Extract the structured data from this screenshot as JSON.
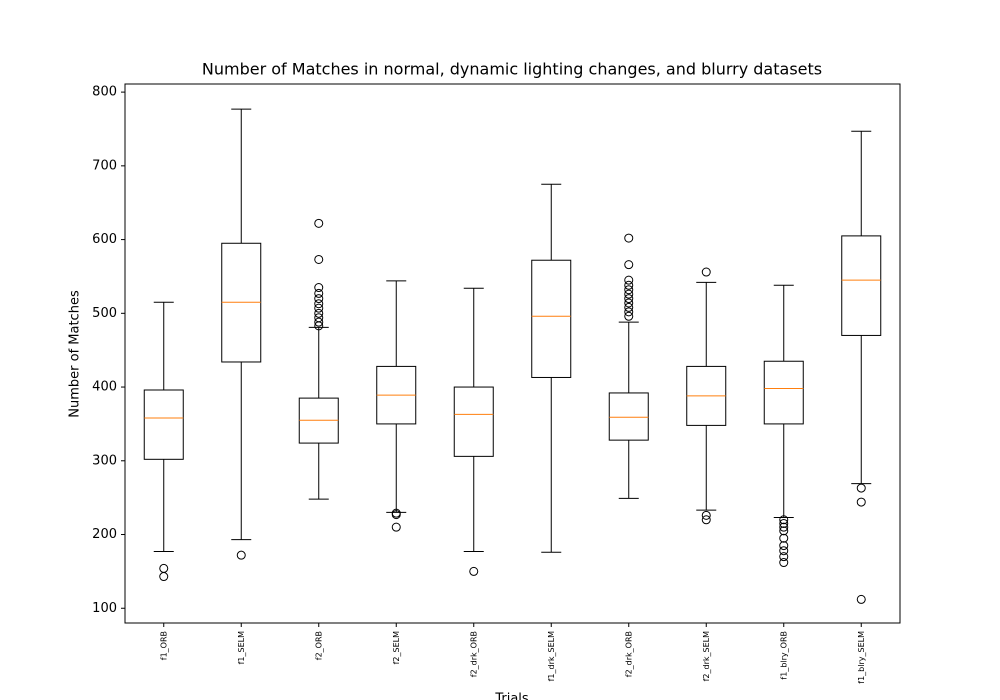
{
  "chart_data": {
    "type": "box",
    "title": "Number of Matches in normal, dynamic lighting changes, and blurry datasets",
    "x_label": "Trials",
    "y_label": "Number of Matches",
    "categories": [
      "f1_ORB",
      "f1_SELM",
      "f2_ORB",
      "f2_SELM",
      "f2_drk_ORB",
      "f1_drk_SELM",
      "f2_drk_ORB",
      "f2_drk_SELM",
      "f1_blry_ORB",
      "f1_blry_SELM"
    ],
    "boxes": [
      {
        "low": 177,
        "q1": 302,
        "median": 358,
        "q3": 396,
        "high": 515,
        "outliers": [
          154,
          143
        ]
      },
      {
        "low": 193,
        "q1": 434,
        "median": 515,
        "q3": 595,
        "high": 777,
        "outliers": [
          172
        ]
      },
      {
        "low": 248,
        "q1": 324,
        "median": 355,
        "q3": 385,
        "high": 481,
        "outliers": [
          622,
          573,
          535,
          527,
          520,
          513,
          507,
          500,
          494,
          488,
          483
        ]
      },
      {
        "low": 230,
        "q1": 350,
        "median": 389,
        "q3": 428,
        "high": 544,
        "outliers": [
          229,
          227,
          210
        ]
      },
      {
        "low": 177,
        "q1": 306,
        "median": 363,
        "q3": 400,
        "high": 534,
        "outliers": [
          150
        ]
      },
      {
        "low": 176,
        "q1": 413,
        "median": 496,
        "q3": 572,
        "high": 675,
        "outliers": []
      },
      {
        "low": 249,
        "q1": 328,
        "median": 359,
        "q3": 392,
        "high": 488,
        "outliers": [
          602,
          566,
          545,
          538,
          532,
          526,
          520,
          514,
          508,
          502,
          496
        ]
      },
      {
        "low": 233,
        "q1": 348,
        "median": 388,
        "q3": 428,
        "high": 542,
        "outliers": [
          556,
          226,
          220
        ]
      },
      {
        "low": 223,
        "q1": 350,
        "median": 398,
        "q3": 435,
        "high": 538,
        "outliers": [
          220,
          215,
          210,
          205,
          195,
          185,
          178,
          170,
          162
        ]
      },
      {
        "low": 269,
        "q1": 470,
        "median": 545,
        "q3": 605,
        "high": 747,
        "outliers": [
          263,
          244,
          112
        ]
      }
    ],
    "box_color": "#000000",
    "median_color": "#ff7f0e",
    "ylim": [
      80,
      811
    ],
    "yticks": [
      100,
      200,
      300,
      400,
      500,
      600,
      700,
      800
    ]
  }
}
